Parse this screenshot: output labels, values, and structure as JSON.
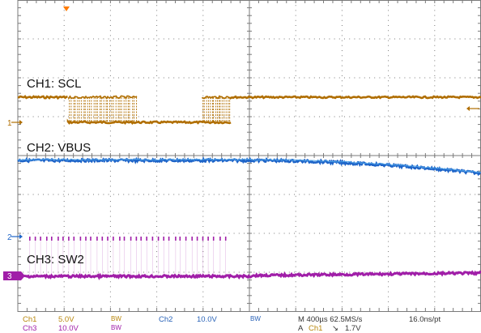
{
  "window": {
    "title": ""
  },
  "colors": {
    "ch1": "#b06e00",
    "ch2": "#1e64c8",
    "ch3": "#a01ea8",
    "grid": "#7a7a7a",
    "label_gold": "#b8860b",
    "label_blue": "#2a63b8"
  },
  "trace_labels": {
    "ch1": "CH1: SCL",
    "ch2": "CH2: VBUS",
    "ch3": "CH3: SW2"
  },
  "markers": {
    "ch1": "1",
    "ch2": "2",
    "ch3": "3"
  },
  "icons": {
    "trigger_position": "trigger-position-icon",
    "trigger_level": "trigger-level-icon"
  },
  "status": {
    "ch1_name": "Ch1",
    "ch1_scale": "5.0V",
    "ch1_bw": "BW",
    "ch2_name": "Ch2",
    "ch2_scale": "10.0V",
    "ch2_bw": "BW",
    "ch3_name": "Ch3",
    "ch3_scale": "10.0V",
    "ch3_bw": "BW",
    "timebase": "M 400µs 62.5MS/s",
    "record": "16.0ns/pt",
    "trigger_mode": "A",
    "trigger_source": "Ch1",
    "trigger_slope": "↘",
    "trigger_level": "1.7V"
  }
}
